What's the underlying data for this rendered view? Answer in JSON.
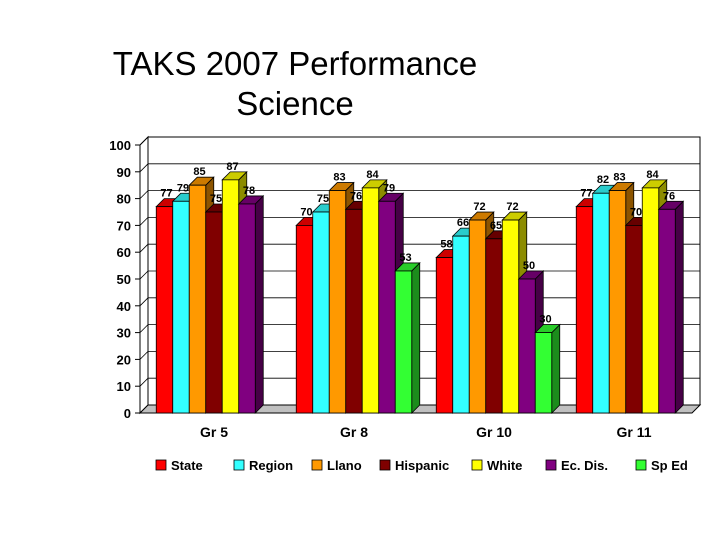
{
  "slide": {
    "title_line1": "TAKS 2007 Performance",
    "title_line2": "Science"
  },
  "chart_data": {
    "type": "bar",
    "title": "TAKS 2007 Performance Science",
    "xlabel": "",
    "ylabel": "",
    "ylim": [
      0,
      100
    ],
    "yticks": [
      0,
      10,
      20,
      30,
      40,
      50,
      60,
      70,
      80,
      90,
      100
    ],
    "categories": [
      "Gr 5",
      "Gr 8",
      "Gr 10",
      "Gr 11"
    ],
    "legend_position": "bottom",
    "series": [
      {
        "name": "State",
        "color": "#ff0000",
        "values": [
          77,
          70,
          58,
          77
        ]
      },
      {
        "name": "Region",
        "color": "#33ffff",
        "values": [
          79,
          75,
          66,
          82
        ]
      },
      {
        "name": "Llano",
        "color": "#ff9900",
        "values": [
          85,
          83,
          72,
          83
        ]
      },
      {
        "name": "Hispanic",
        "color": "#800000",
        "values": [
          75,
          76,
          65,
          70
        ]
      },
      {
        "name": "White",
        "color": "#ffff00",
        "values": [
          87,
          84,
          72,
          84
        ]
      },
      {
        "name": "Ec. Dis.",
        "color": "#800080",
        "values": [
          78,
          79,
          50,
          76
        ]
      },
      {
        "name": "Sp Ed",
        "color": "#33ff33",
        "values": [
          null,
          53,
          30,
          null
        ]
      }
    ]
  }
}
